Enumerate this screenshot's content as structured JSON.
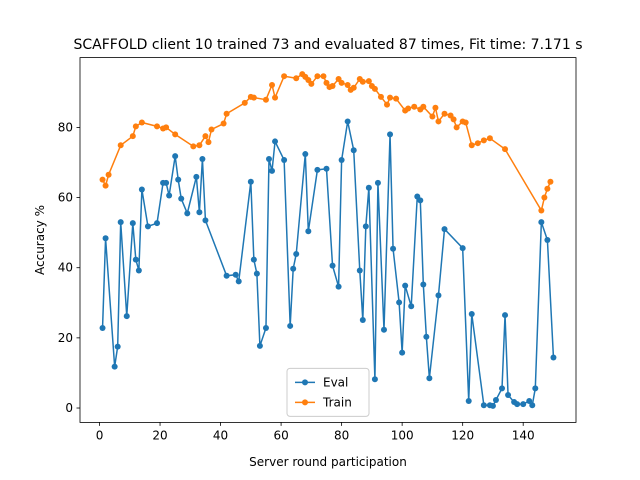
{
  "chart_data": {
    "type": "line",
    "title": "SCAFFOLD client 10 trained 73 and evaluated 87 times, Fit time: 7.171 s",
    "xlabel": "Server round participation",
    "ylabel": "Accuracy %",
    "xlim": [
      -6.45,
      157.45
    ],
    "xticks": [
      0,
      20,
      40,
      60,
      80,
      100,
      120,
      140
    ],
    "ylim": [
      -4.1,
      99.9
    ],
    "yticks": [
      0,
      20,
      40,
      60,
      80
    ],
    "legend": "lower center",
    "series": [
      {
        "name": "Eval",
        "color": "#1f77b4",
        "x": [
          1,
          2,
          5,
          6,
          7,
          9,
          11,
          12,
          13,
          14,
          16,
          19,
          21,
          22,
          23,
          25,
          26,
          27,
          29,
          32,
          33,
          34,
          35,
          42,
          45,
          46,
          50,
          51,
          52,
          53,
          55,
          56,
          57,
          58,
          61,
          63,
          64,
          65,
          68,
          69,
          72,
          75,
          77,
          79,
          80,
          82,
          84,
          86,
          87,
          88,
          89,
          91,
          92,
          94,
          96,
          97,
          99,
          100,
          101,
          103,
          105,
          106,
          107,
          108,
          109,
          112,
          114,
          120,
          122,
          123,
          127,
          129,
          130,
          131,
          133,
          134,
          135,
          137,
          138,
          140,
          142,
          143,
          144,
          146,
          148,
          150
        ],
        "values": [
          22.8,
          48.4,
          11.8,
          17.5,
          53,
          26.2,
          52.7,
          42.3,
          39.2,
          62.3,
          51.8,
          52.7,
          64.2,
          64.2,
          60.6,
          71.8,
          65.1,
          59.7,
          55.5,
          65.9,
          55.8,
          71,
          53.5,
          37.7,
          38,
          36.1,
          64.5,
          42.3,
          38.3,
          17.7,
          22.8,
          71,
          67.6,
          76,
          70.7,
          23.4,
          39.7,
          43.9,
          72.4,
          50.4,
          67.9,
          68.2,
          40.6,
          34.6,
          70.7,
          81.7,
          73.5,
          39.2,
          25.1,
          51.8,
          62.8,
          8.2,
          64.2,
          22.3,
          78,
          45.4,
          30.1,
          15.8,
          34.9,
          29,
          60.3,
          59.2,
          35.2,
          20.3,
          8.5,
          32.1,
          51,
          45.6,
          2,
          26.8,
          0.8,
          0.8,
          0.6,
          2.3,
          5.6,
          26.5,
          3.7,
          1.7,
          1.1,
          1.1,
          2,
          0.8,
          5.6,
          53,
          47.9,
          14.4
        ]
      },
      {
        "name": "Train",
        "color": "#ff7f0e",
        "x": [
          1,
          2,
          3,
          7,
          11,
          12,
          14,
          19,
          21,
          22,
          25,
          31,
          33,
          35,
          36,
          37,
          41,
          42,
          48,
          50,
          51,
          55,
          57,
          58,
          61,
          65,
          67,
          68,
          69,
          70,
          72,
          74,
          75,
          76,
          77,
          79,
          80,
          82,
          83,
          84,
          86,
          87,
          89,
          90,
          91,
          93,
          95,
          96,
          98,
          101,
          102,
          104,
          106,
          107,
          110,
          111,
          112,
          114,
          116,
          117,
          118,
          120,
          121,
          123,
          125,
          127,
          129,
          134,
          146,
          147,
          148,
          149
        ],
        "values": [
          65.1,
          63.4,
          66.5,
          74.9,
          77.5,
          80.3,
          81.4,
          80.3,
          79.7,
          80,
          78,
          74.6,
          74.9,
          77.5,
          75.8,
          79.4,
          81.1,
          83.9,
          87,
          88.7,
          88.5,
          87.9,
          92.1,
          88.5,
          94.6,
          94,
          95.2,
          94.4,
          93.5,
          92.4,
          94.6,
          94.6,
          92.7,
          91.5,
          91.8,
          93.8,
          92.7,
          92.1,
          90.7,
          91.3,
          93.8,
          93,
          93.2,
          91.8,
          91,
          88.7,
          86.5,
          88.5,
          88.2,
          84.8,
          85.4,
          85.9,
          85.1,
          85.9,
          83.1,
          85.6,
          81.7,
          83.9,
          83.4,
          82.3,
          80,
          81.7,
          81.4,
          74.9,
          75.5,
          76.3,
          76.9,
          73.8,
          56.3,
          60,
          62.5,
          64.5
        ]
      }
    ]
  }
}
